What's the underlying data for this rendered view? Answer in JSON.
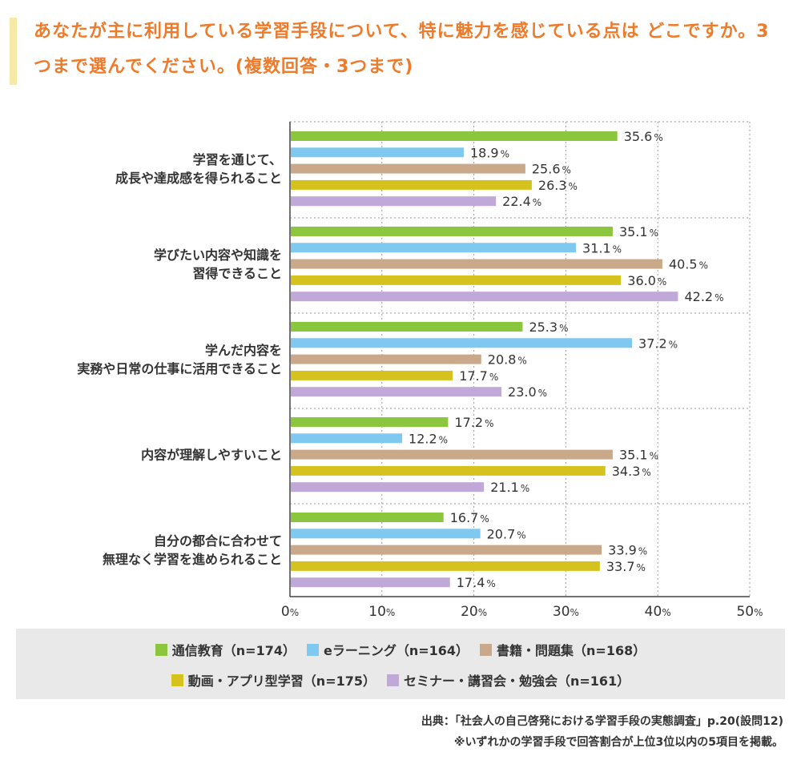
{
  "title": "あなたが主に利用している学習手段について、特に魅力を感じている点は どこですか。3つまで選んでください。(複数回答・3つまで)",
  "chart_data": {
    "type": "bar",
    "orientation": "horizontal",
    "categories": [
      [
        "学習を通じて、",
        "成長や達成感を得られること"
      ],
      [
        "学びたい内容や知識を",
        "習得できること"
      ],
      [
        "学んだ内容を",
        "実務や日常の仕事に活用できること"
      ],
      [
        "内容が理解しやすいこと"
      ],
      [
        "自分の都合に合わせて",
        "無理なく学習を進められること"
      ]
    ],
    "series": [
      {
        "name": "通信教育（n=174）",
        "color": "#8cc63f",
        "values": [
          35.6,
          35.1,
          25.3,
          17.2,
          16.7
        ]
      },
      {
        "name": "eラーニング（n=164）",
        "color": "#7fc8ef",
        "values": [
          18.9,
          31.1,
          37.2,
          12.2,
          20.7
        ]
      },
      {
        "name": "書籍・問題集（n=168）",
        "color": "#c9a98a",
        "values": [
          25.6,
          40.5,
          20.8,
          35.1,
          33.9
        ]
      },
      {
        "name": "動画・アプリ型学習（n=175）",
        "color": "#d6c21f",
        "values": [
          26.3,
          36.0,
          17.7,
          34.3,
          33.7
        ]
      },
      {
        "name": "セミナー・講習会・勉強会（n=161）",
        "color": "#c0a8d8",
        "values": [
          22.4,
          42.2,
          23.0,
          21.1,
          17.4
        ]
      }
    ],
    "xlim": [
      0,
      50
    ],
    "xticks": [
      0,
      10,
      20,
      30,
      40,
      50
    ],
    "unit": "%",
    "grid": true,
    "legend_position": "bottom"
  },
  "source_lines": [
    "出典：「社会人の自己啓発における学習手段の実態調査」p.20(設問12)",
    "※いずれかの学習手段で回答割合が上位3位以内の5項目を掲載。"
  ]
}
